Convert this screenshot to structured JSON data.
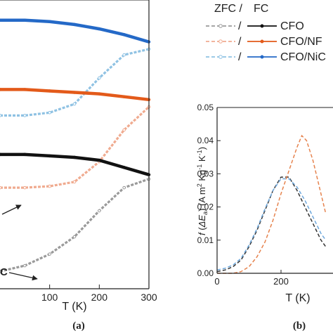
{
  "chart_data": [
    {
      "panel_label": "(a)",
      "type": "line",
      "xlabel": "T (K)",
      "x_ticks": [
        "100",
        "200",
        "300"
      ],
      "xlim": [
        0,
        300
      ],
      "ylim": [
        0,
        1
      ],
      "grid": false,
      "annotations": [
        "C"
      ],
      "series": [
        {
          "group": "CFO/NiCoFe FC",
          "color": "#2469c7",
          "style": "solid-dots",
          "x": [
            0,
            50,
            100,
            150,
            200,
            250,
            300
          ],
          "y": [
            0.93,
            0.93,
            0.925,
            0.915,
            0.9,
            0.88,
            0.855
          ]
        },
        {
          "group": "CFO/NiCoFe ZFC",
          "color": "#8fc2e3",
          "style": "dashed-open",
          "x": [
            0,
            50,
            100,
            150,
            200,
            250,
            300
          ],
          "y": [
            0.6,
            0.6,
            0.61,
            0.64,
            0.73,
            0.81,
            0.83
          ]
        },
        {
          "group": "CFO/NFO FC",
          "color": "#e35a1a",
          "style": "solid-dots",
          "x": [
            0,
            50,
            100,
            150,
            200,
            250,
            300
          ],
          "y": [
            0.69,
            0.69,
            0.685,
            0.68,
            0.675,
            0.665,
            0.655
          ]
        },
        {
          "group": "CFO/NFO ZFC",
          "color": "#f0ab90",
          "style": "dashed-open",
          "x": [
            0,
            50,
            100,
            150,
            200,
            250,
            300
          ],
          "y": [
            0.35,
            0.35,
            0.355,
            0.37,
            0.44,
            0.55,
            0.63
          ]
        },
        {
          "group": "CFO FC",
          "color": "#111111",
          "style": "solid-dots",
          "x": [
            0,
            50,
            100,
            150,
            200,
            250,
            300
          ],
          "y": [
            0.465,
            0.465,
            0.46,
            0.455,
            0.445,
            0.42,
            0.395
          ]
        },
        {
          "group": "CFO ZFC",
          "color": "#9a9a9a",
          "style": "dashed-open",
          "x": [
            0,
            50,
            100,
            150,
            200,
            250,
            300
          ],
          "y": [
            0.06,
            0.08,
            0.12,
            0.18,
            0.27,
            0.35,
            0.38
          ]
        }
      ]
    },
    {
      "panel_label": "(b)",
      "type": "line",
      "xlabel": "T (K)",
      "ylabel_parts": {
        "f": "f",
        "open": " (",
        "delta_e": "ΔE",
        "sub_a": "a",
        "close": ") (A m",
        "sup2": "2",
        "kg": " Kg",
        "supm1a": "-1",
        "k": " K",
        "supm1b": "-1",
        "end": ")"
      },
      "y_ticks": [
        "0.00",
        "0.01",
        "0.02",
        "0.03",
        "0.04",
        "0.05"
      ],
      "x_ticks": [
        "0",
        "200"
      ],
      "xlim": [
        0,
        340
      ],
      "ylim": [
        0,
        0.05
      ],
      "grid": false,
      "legend": {
        "placement": "top",
        "header": [
          "ZFC /",
          "FC"
        ],
        "separator": "/",
        "entries": [
          "CFO",
          "CFO/NF",
          "CFO/NiC"
        ],
        "colors": [
          "#111111",
          "#e35a1a",
          "#2469c7"
        ],
        "zfc_colors": [
          "#9a9a9a",
          "#f0ab90",
          "#8fc2e3"
        ]
      },
      "series": [
        {
          "group": "CFO",
          "color": "#333333",
          "style": "dashed",
          "x": [
            0,
            25,
            50,
            75,
            100,
            125,
            150,
            175,
            200,
            225,
            250,
            275,
            300,
            325,
            340
          ],
          "y": [
            0.0005,
            0.001,
            0.002,
            0.004,
            0.008,
            0.013,
            0.019,
            0.025,
            0.029,
            0.029,
            0.025,
            0.02,
            0.015,
            0.01,
            0.008
          ]
        },
        {
          "group": "CFO/NiCoFe",
          "color": "#6fa8dc",
          "style": "dashed",
          "x": [
            0,
            25,
            50,
            75,
            100,
            125,
            150,
            175,
            200,
            225,
            250,
            275,
            300,
            325,
            340
          ],
          "y": [
            0.001,
            0.0015,
            0.0025,
            0.0045,
            0.0085,
            0.0135,
            0.0195,
            0.025,
            0.0285,
            0.0285,
            0.026,
            0.022,
            0.017,
            0.012,
            0.01
          ]
        },
        {
          "group": "CFO/NFO",
          "color": "#e6834e",
          "style": "dashed",
          "x": [
            0,
            50,
            75,
            100,
            125,
            150,
            175,
            200,
            225,
            250,
            265,
            280,
            300,
            320,
            340
          ],
          "y": [
            0,
            0,
            0.0005,
            0.002,
            0.005,
            0.0095,
            0.016,
            0.024,
            0.031,
            0.038,
            0.0415,
            0.04,
            0.034,
            0.026,
            0.018
          ]
        }
      ]
    }
  ]
}
